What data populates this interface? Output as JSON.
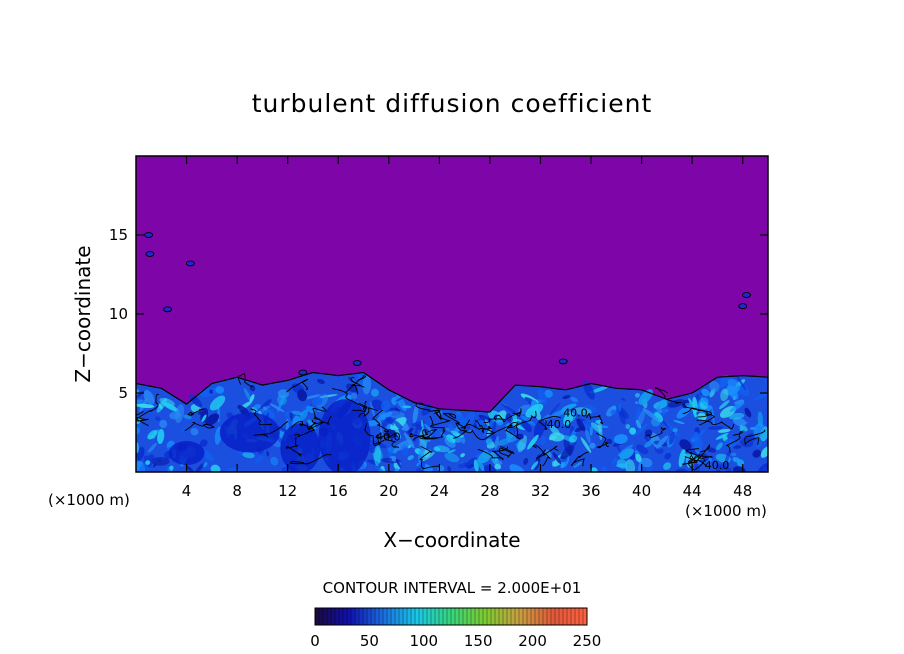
{
  "chart_data": {
    "type": "heatmap",
    "title": "turbulent diffusion coefficient",
    "xlabel": "X−coordinate",
    "ylabel": "Z−coordinate",
    "x_unit_left": "(×1000 m)",
    "x_unit_right": "(×1000 m)",
    "xlim": [
      0,
      50
    ],
    "ylim": [
      0,
      20
    ],
    "x_ticks": [
      4,
      8,
      12,
      16,
      20,
      24,
      28,
      32,
      36,
      40,
      44,
      48
    ],
    "y_ticks": [
      5,
      10,
      15
    ],
    "background_value": 0,
    "contour_interval_text": "CONTOUR INTERVAL = 2.000E+01",
    "contour_labels": [
      {
        "text": "40.0",
        "x": 19.0,
        "z": 2.0
      },
      {
        "text": "40.0",
        "x": 32.5,
        "z": 2.8
      },
      {
        "text": "40.0",
        "x": 33.8,
        "z": 3.5
      },
      {
        "text": "40.0",
        "x": 45.0,
        "z": 0.2
      }
    ],
    "turbulent_layer_top": [
      [
        0,
        5.6
      ],
      [
        2,
        5.3
      ],
      [
        4,
        4.3
      ],
      [
        6,
        5.6
      ],
      [
        8,
        6.0
      ],
      [
        10,
        5.5
      ],
      [
        12,
        5.8
      ],
      [
        14,
        6.3
      ],
      [
        16,
        6.1
      ],
      [
        18,
        6.3
      ],
      [
        20,
        5.2
      ],
      [
        22,
        4.4
      ],
      [
        24,
        4.0
      ],
      [
        26,
        3.9
      ],
      [
        28,
        3.8
      ],
      [
        30,
        5.5
      ],
      [
        32,
        5.4
      ],
      [
        34,
        5.2
      ],
      [
        36,
        5.6
      ],
      [
        38,
        5.3
      ],
      [
        40,
        5.2
      ],
      [
        42,
        4.6
      ],
      [
        44,
        5.0
      ],
      [
        46,
        6.0
      ],
      [
        48,
        6.1
      ],
      [
        50,
        6.0
      ]
    ],
    "colorbar": {
      "ticks": [
        0,
        50,
        100,
        150,
        200,
        250
      ],
      "colors": [
        "#1a0a3c",
        "#1010b0",
        "#1a6ee0",
        "#19c8e6",
        "#36d67a",
        "#7ccc30",
        "#c8a040",
        "#e05a3a",
        "#ff6040"
      ]
    }
  }
}
